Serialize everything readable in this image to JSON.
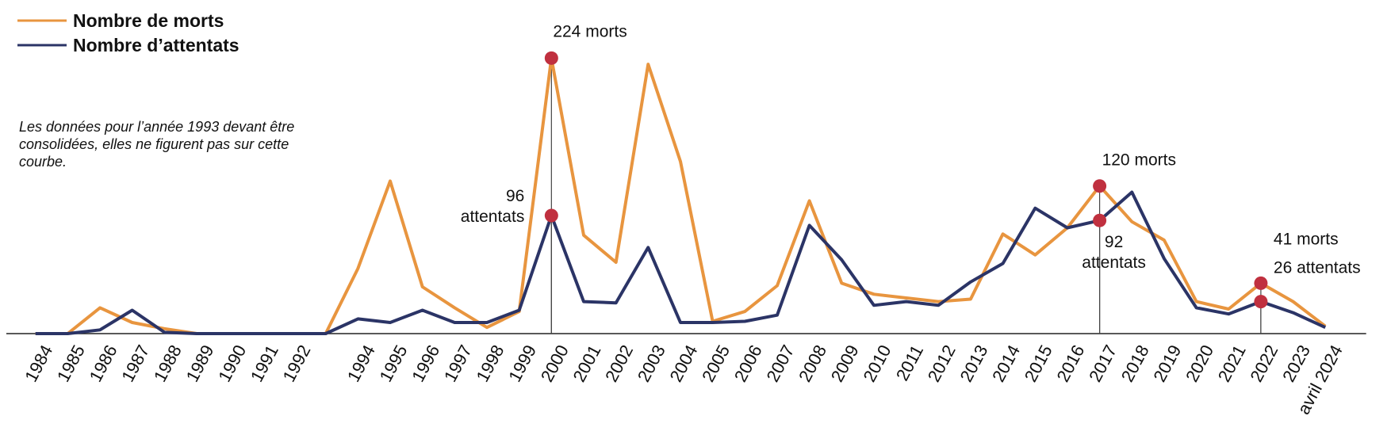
{
  "chart_data": {
    "type": "line",
    "categories": [
      "1984",
      "1985",
      "1986",
      "1987",
      "1988",
      "1989",
      "1990",
      "1991",
      "1992",
      null,
      "1994",
      "1995",
      "1996",
      "1997",
      "1998",
      "1999",
      "2000",
      "2001",
      "2002",
      "2003",
      "2004",
      "2005",
      "2006",
      "2007",
      "2008",
      "2009",
      "2010",
      "2011",
      "2012",
      "2013",
      "2014",
      "2015",
      "2016",
      "2017",
      "2018",
      "2019",
      "2020",
      "2021",
      "2022",
      "2023",
      "avril 2024"
    ],
    "series": [
      {
        "name": "Nombre de morts",
        "color": "#e8953f",
        "values": [
          0,
          0,
          21,
          9,
          4,
          0,
          0,
          0,
          0,
          0,
          53,
          124,
          38,
          21,
          5,
          18,
          224,
          80,
          58,
          219,
          140,
          10,
          18,
          39,
          108,
          41,
          32,
          29,
          26,
          28,
          81,
          64,
          86,
          120,
          91,
          76,
          26,
          20,
          41,
          26,
          6
        ]
      },
      {
        "name": "Nombre d’attentats",
        "color": "#2b3466",
        "values": [
          0,
          0,
          3,
          19,
          1,
          0,
          0,
          0,
          0,
          0,
          12,
          9,
          19,
          9,
          9,
          19,
          96,
          26,
          25,
          70,
          9,
          9,
          10,
          15,
          88,
          60,
          23,
          26,
          23,
          42,
          57,
          102,
          86,
          92,
          115,
          61,
          21,
          16,
          26,
          17,
          5
        ]
      }
    ],
    "ylim": [
      0,
      230
    ],
    "highlight_color": "#c0303f",
    "last_category_color": "#8b1a2b",
    "note": [
      "Les données pour l’année 1993 devant être",
      "consolidées, elles ne figurent pas sur cette",
      "courbe."
    ],
    "annotations": [
      {
        "index": 16,
        "series": 0,
        "text": [
          "224 morts"
        ]
      },
      {
        "index": 16,
        "series": 1,
        "text": [
          "96",
          "attentats"
        ]
      },
      {
        "index": 33,
        "series": 0,
        "text": [
          "120 morts"
        ]
      },
      {
        "index": 33,
        "series": 1,
        "text": [
          "92",
          "attentats"
        ]
      },
      {
        "index": 38,
        "series": 0,
        "text": [
          "41 morts"
        ]
      },
      {
        "index": 38,
        "series": 1,
        "text": [
          "26 attentats"
        ]
      }
    ]
  }
}
